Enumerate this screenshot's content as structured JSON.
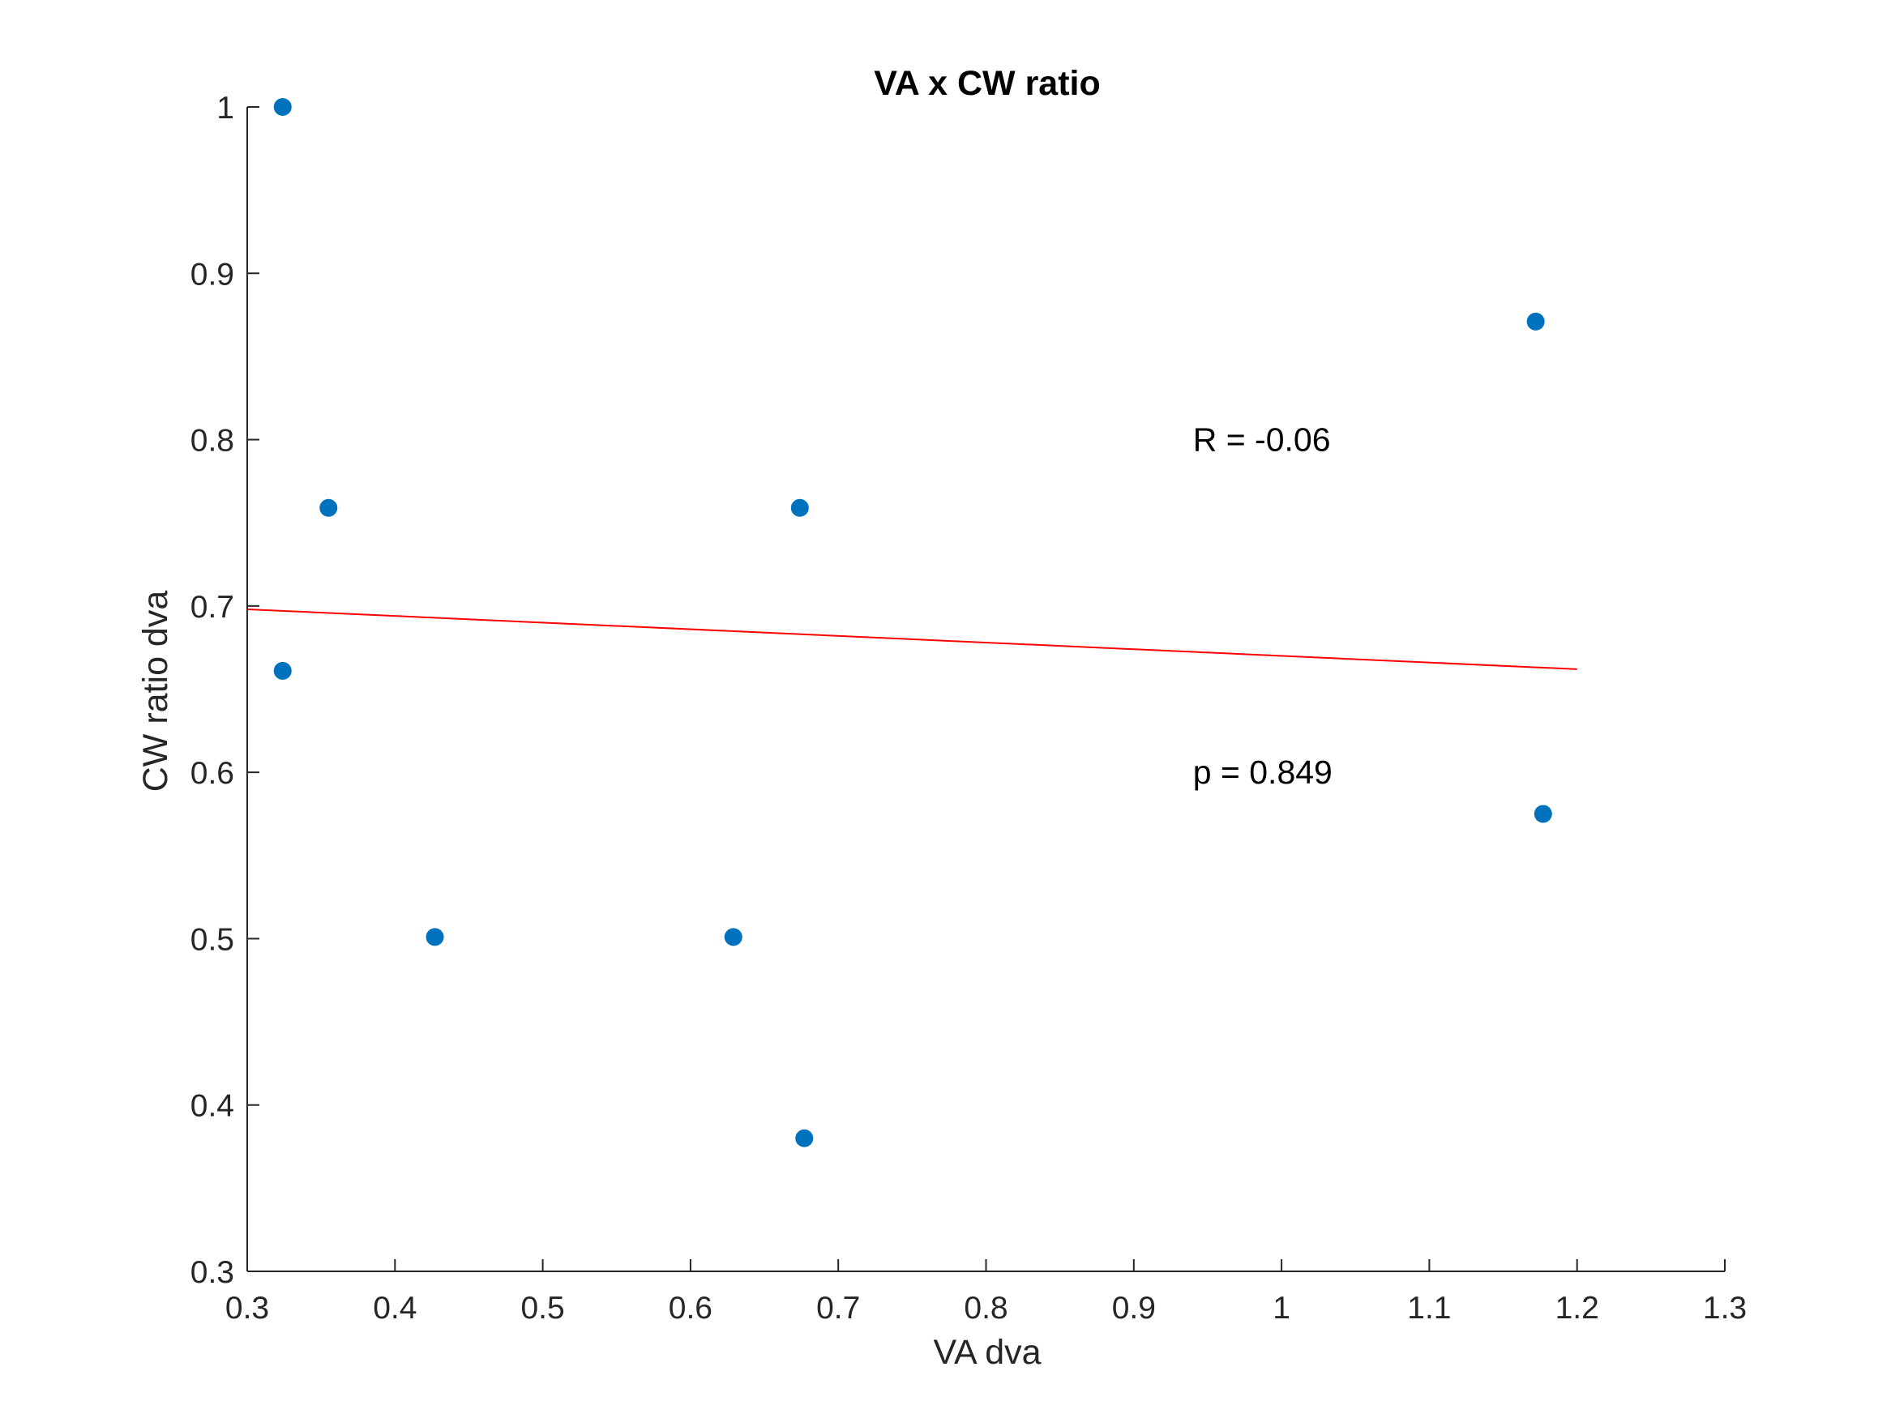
{
  "chart_data": {
    "type": "scatter",
    "title": "VA x CW ratio",
    "xlabel": "VA dva",
    "ylabel": "CW ratio dva",
    "xlim": [
      0.3,
      1.3
    ],
    "ylim": [
      0.3,
      1.0
    ],
    "x_ticks": [
      0.3,
      0.4,
      0.5,
      0.6,
      0.7,
      0.8,
      0.9,
      1.0,
      1.1,
      1.2,
      1.3
    ],
    "x_tick_labels": [
      "0.3",
      "0.4",
      "0.5",
      "0.6",
      "0.7",
      "0.8",
      "0.9",
      "1",
      "1.1",
      "1.2",
      "1.3"
    ],
    "y_ticks": [
      0.3,
      0.4,
      0.5,
      0.6,
      0.7,
      0.8,
      0.9,
      1.0
    ],
    "y_tick_labels": [
      "0.3",
      "0.4",
      "0.5",
      "0.6",
      "0.7",
      "0.8",
      "0.9",
      "1"
    ],
    "grid": false,
    "series": [
      {
        "type": "scatter",
        "color": "#0072BD",
        "points": [
          {
            "x": 0.324,
            "y": 1.0
          },
          {
            "x": 0.355,
            "y": 0.759
          },
          {
            "x": 0.324,
            "y": 0.661
          },
          {
            "x": 0.427,
            "y": 0.501
          },
          {
            "x": 0.629,
            "y": 0.501
          },
          {
            "x": 0.674,
            "y": 0.759
          },
          {
            "x": 0.677,
            "y": 0.38
          },
          {
            "x": 1.172,
            "y": 0.871
          },
          {
            "x": 1.177,
            "y": 0.575
          }
        ]
      },
      {
        "type": "line",
        "color": "#FF0000",
        "x": [
          0.3,
          1.2
        ],
        "y": [
          0.698,
          0.662
        ]
      }
    ],
    "annotations": [
      {
        "text": "R = -0.06",
        "x": 0.94,
        "y": 0.8
      },
      {
        "text": "p = 0.849",
        "x": 0.94,
        "y": 0.6
      }
    ]
  }
}
